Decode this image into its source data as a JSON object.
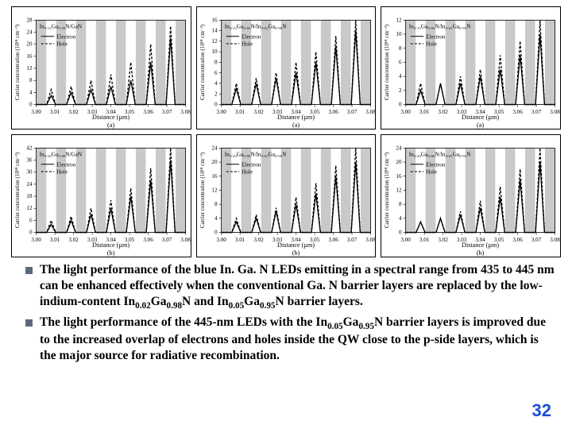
{
  "page_number": "32",
  "bullets": [
    "The light performance of the blue In. Ga. N LEDs emitting in a spectral range from 435 to 445 nm can be enhanced effectively when the conventional Ga. N barrier layers are replaced by the low-indium-content In|0.02|Ga|0.98|N and In|0.05|Ga|0.95|N barrier layers.",
    "The light performance of the 445-nm LEDs with the In|0.05|Ga|0.95|N barrier layers is improved due to the increased overlap of electrons and holes inside the QW close to the p-side layers, which is the major source for radiative recombination."
  ],
  "charts": {
    "common": {
      "xlabel": "Distance (µm)",
      "ylabel": "Carrier concentration (10¹⁸ cm⁻³)",
      "xlim": [
        3.0,
        3.08
      ],
      "xtick_step": 0.01,
      "grid_color": "#ffffff",
      "axis_color": "#000000",
      "barrier_fill": "#c9c9c9",
      "electron_style": "solid",
      "hole_style": "dashed",
      "line_color": "#000000",
      "line_width": 1.3,
      "label_fontsize": 8,
      "tick_fontsize": 7,
      "legend_fontsize": 7,
      "title_fontsize": 7,
      "num_barriers": 8,
      "num_peaks": 7
    },
    "rows": [
      {
        "sublabel": "(a)"
      },
      {
        "sublabel": "(b)"
      }
    ],
    "panels": [
      {
        "title": "In₀.₁₅Ga₀.₈₅N/GaN",
        "ylim": [
          0,
          28
        ],
        "ytick_step": 4,
        "electron": [
          3,
          4,
          5,
          6,
          8,
          14,
          22
        ],
        "hole": [
          5,
          6,
          8,
          10,
          14,
          20,
          26
        ],
        "row": 0
      },
      {
        "title": "In₀.₁₅Ga₀.₈₅N/In₀.₀₂Ga₀.₉₈N",
        "ylim": [
          0,
          16
        ],
        "ytick_step": 2,
        "electron": [
          3,
          4,
          5,
          6,
          8,
          11,
          14
        ],
        "hole": [
          4,
          5,
          6,
          8,
          10,
          13,
          16
        ],
        "row": 0
      },
      {
        "title": "In₀.₁₅Ga₀.₈₅N/In₀.₀₅Ga₀.₉₅N",
        "ylim": [
          0,
          12
        ],
        "ytick_step": 2,
        "electron": [
          2,
          3,
          3,
          4,
          5,
          7,
          10
        ],
        "hole": [
          3,
          3,
          4,
          5,
          7,
          9,
          12
        ],
        "row": 0
      },
      {
        "title": "In₀.₂₀Ga₀.₈₀N/GaN",
        "ylim": [
          0,
          42
        ],
        "ytick_step": 6,
        "electron": [
          4,
          6,
          9,
          12,
          18,
          26,
          36
        ],
        "hole": [
          6,
          8,
          12,
          16,
          22,
          32,
          42
        ],
        "row": 1
      },
      {
        "title": "In₀.₂₀Ga₀.₈₀N/In₀.₀₂Ga₀.₉₈N",
        "ylim": [
          0,
          24
        ],
        "ytick_step": 4,
        "electron": [
          3,
          4,
          6,
          8,
          11,
          16,
          20
        ],
        "hole": [
          4,
          5,
          7,
          10,
          14,
          19,
          24
        ],
        "row": 1
      },
      {
        "title": "In₀.₂₀Ga₀.₈₀N/In₀.₀₅Ga₀.₉₅N",
        "ylim": [
          0,
          24
        ],
        "ytick_step": 4,
        "electron": [
          3,
          4,
          5,
          7,
          10,
          15,
          20
        ],
        "hole": [
          3,
          4,
          6,
          9,
          13,
          18,
          24
        ],
        "row": 1
      }
    ],
    "legend_items": [
      {
        "label": "Electron",
        "dash": "solid"
      },
      {
        "label": "Hole",
        "dash": "dashed"
      }
    ]
  }
}
